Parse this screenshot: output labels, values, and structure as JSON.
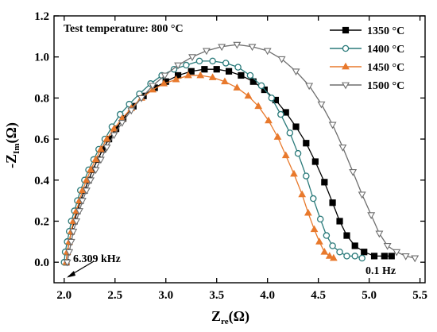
{
  "chart_data": {
    "type": "scatter",
    "annotation_title": "Test temperature: 800 °C",
    "xlabel_main": "Z",
    "xlabel_sub": "re",
    "xlabel_unit": "(Ω)",
    "ylabel_main": "-Z",
    "ylabel_sub": "Im",
    "ylabel_unit": "(Ω)",
    "xlim": [
      1.9,
      5.55
    ],
    "ylim": [
      -0.1,
      1.2
    ],
    "xticks": [
      "2.0",
      "2.5",
      "3.0",
      "3.5",
      "4.0",
      "4.5",
      "5.0",
      "5.5"
    ],
    "yticks": [
      "0.0",
      "0.2",
      "0.4",
      "0.6",
      "0.8",
      "1.0",
      "1.2"
    ],
    "grid": false,
    "legend_position": "top-right",
    "annotations": [
      {
        "text": "6.309 kHz",
        "x": 2.1,
        "y": -0.075
      },
      {
        "text": "0.1 Hz",
        "x": 4.95,
        "y": -0.085
      }
    ],
    "series": [
      {
        "name": "1350 °C",
        "color": "#000000",
        "marker": "square",
        "points": [
          [
            2.02,
            0.0
          ],
          [
            2.03,
            0.05
          ],
          [
            2.05,
            0.1
          ],
          [
            2.07,
            0.15
          ],
          [
            2.1,
            0.2
          ],
          [
            2.13,
            0.25
          ],
          [
            2.16,
            0.3
          ],
          [
            2.2,
            0.35
          ],
          [
            2.24,
            0.4
          ],
          [
            2.28,
            0.45
          ],
          [
            2.33,
            0.5
          ],
          [
            2.38,
            0.55
          ],
          [
            2.44,
            0.6
          ],
          [
            2.51,
            0.65
          ],
          [
            2.58,
            0.7
          ],
          [
            2.68,
            0.76
          ],
          [
            2.78,
            0.81
          ],
          [
            2.89,
            0.85
          ],
          [
            3.0,
            0.88
          ],
          [
            3.12,
            0.91
          ],
          [
            3.25,
            0.93
          ],
          [
            3.38,
            0.94
          ],
          [
            3.5,
            0.94
          ],
          [
            3.62,
            0.93
          ],
          [
            3.74,
            0.91
          ],
          [
            3.86,
            0.88
          ],
          [
            3.97,
            0.84
          ],
          [
            4.08,
            0.79
          ],
          [
            4.18,
            0.73
          ],
          [
            4.28,
            0.66
          ],
          [
            4.38,
            0.58
          ],
          [
            4.47,
            0.49
          ],
          [
            4.56,
            0.39
          ],
          [
            4.64,
            0.29
          ],
          [
            4.71,
            0.2
          ],
          [
            4.78,
            0.13
          ],
          [
            4.86,
            0.08
          ],
          [
            4.95,
            0.05
          ],
          [
            5.05,
            0.03
          ],
          [
            5.15,
            0.03
          ],
          [
            5.22,
            0.03
          ]
        ]
      },
      {
        "name": "1400 °C",
        "color": "#2a7a7a",
        "marker": "circle",
        "points": [
          [
            2.0,
            0.0
          ],
          [
            2.01,
            0.05
          ],
          [
            2.03,
            0.1
          ],
          [
            2.05,
            0.15
          ],
          [
            2.07,
            0.2
          ],
          [
            2.1,
            0.25
          ],
          [
            2.13,
            0.3
          ],
          [
            2.16,
            0.35
          ],
          [
            2.2,
            0.4
          ],
          [
            2.24,
            0.45
          ],
          [
            2.29,
            0.5
          ],
          [
            2.34,
            0.55
          ],
          [
            2.4,
            0.6
          ],
          [
            2.47,
            0.66
          ],
          [
            2.55,
            0.72
          ],
          [
            2.64,
            0.77
          ],
          [
            2.74,
            0.82
          ],
          [
            2.85,
            0.87
          ],
          [
            2.96,
            0.91
          ],
          [
            3.08,
            0.94
          ],
          [
            3.2,
            0.96
          ],
          [
            3.33,
            0.98
          ],
          [
            3.46,
            0.98
          ],
          [
            3.59,
            0.97
          ],
          [
            3.71,
            0.95
          ],
          [
            3.83,
            0.91
          ],
          [
            3.94,
            0.86
          ],
          [
            4.04,
            0.8
          ],
          [
            4.13,
            0.72
          ],
          [
            4.22,
            0.63
          ],
          [
            4.3,
            0.53
          ],
          [
            4.38,
            0.42
          ],
          [
            4.45,
            0.31
          ],
          [
            4.52,
            0.21
          ],
          [
            4.58,
            0.13
          ],
          [
            4.64,
            0.08
          ],
          [
            4.71,
            0.05
          ],
          [
            4.78,
            0.03
          ],
          [
            4.86,
            0.03
          ],
          [
            4.93,
            0.02
          ]
        ]
      },
      {
        "name": "1450 °C",
        "color": "#e8792c",
        "marker": "triangle-up",
        "points": [
          [
            2.02,
            0.0
          ],
          [
            2.03,
            0.05
          ],
          [
            2.05,
            0.1
          ],
          [
            2.07,
            0.15
          ],
          [
            2.09,
            0.2
          ],
          [
            2.12,
            0.25
          ],
          [
            2.15,
            0.3
          ],
          [
            2.18,
            0.35
          ],
          [
            2.22,
            0.4
          ],
          [
            2.26,
            0.45
          ],
          [
            2.31,
            0.5
          ],
          [
            2.36,
            0.55
          ],
          [
            2.42,
            0.6
          ],
          [
            2.49,
            0.65
          ],
          [
            2.57,
            0.7
          ],
          [
            2.66,
            0.75
          ],
          [
            2.76,
            0.8
          ],
          [
            2.87,
            0.84
          ],
          [
            2.98,
            0.87
          ],
          [
            3.1,
            0.89
          ],
          [
            3.22,
            0.91
          ],
          [
            3.34,
            0.91
          ],
          [
            3.46,
            0.9
          ],
          [
            3.58,
            0.88
          ],
          [
            3.7,
            0.85
          ],
          [
            3.81,
            0.81
          ],
          [
            3.91,
            0.76
          ],
          [
            4.01,
            0.69
          ],
          [
            4.1,
            0.61
          ],
          [
            4.18,
            0.52
          ],
          [
            4.26,
            0.43
          ],
          [
            4.34,
            0.33
          ],
          [
            4.4,
            0.24
          ],
          [
            4.46,
            0.16
          ],
          [
            4.51,
            0.1
          ],
          [
            4.56,
            0.05
          ],
          [
            4.61,
            0.03
          ],
          [
            4.65,
            0.02
          ]
        ]
      },
      {
        "name": "1500 °C",
        "color": "#6e6e6e",
        "marker": "triangle-down",
        "points": [
          [
            2.03,
            0.0
          ],
          [
            2.05,
            0.05
          ],
          [
            2.07,
            0.1
          ],
          [
            2.09,
            0.15
          ],
          [
            2.12,
            0.2
          ],
          [
            2.15,
            0.25
          ],
          [
            2.18,
            0.3
          ],
          [
            2.22,
            0.35
          ],
          [
            2.26,
            0.4
          ],
          [
            2.31,
            0.45
          ],
          [
            2.36,
            0.5
          ],
          [
            2.42,
            0.56
          ],
          [
            2.49,
            0.62
          ],
          [
            2.57,
            0.68
          ],
          [
            2.66,
            0.74
          ],
          [
            2.76,
            0.8
          ],
          [
            2.87,
            0.86
          ],
          [
            2.99,
            0.91
          ],
          [
            3.12,
            0.96
          ],
          [
            3.26,
            1.0
          ],
          [
            3.4,
            1.03
          ],
          [
            3.55,
            1.05
          ],
          [
            3.7,
            1.06
          ],
          [
            3.85,
            1.05
          ],
          [
            4.0,
            1.03
          ],
          [
            4.14,
            0.99
          ],
          [
            4.28,
            0.93
          ],
          [
            4.41,
            0.86
          ],
          [
            4.53,
            0.77
          ],
          [
            4.64,
            0.67
          ],
          [
            4.74,
            0.56
          ],
          [
            4.84,
            0.44
          ],
          [
            4.93,
            0.33
          ],
          [
            5.02,
            0.23
          ],
          [
            5.1,
            0.14
          ],
          [
            5.18,
            0.08
          ],
          [
            5.27,
            0.05
          ],
          [
            5.36,
            0.03
          ],
          [
            5.45,
            0.02
          ]
        ]
      }
    ]
  }
}
